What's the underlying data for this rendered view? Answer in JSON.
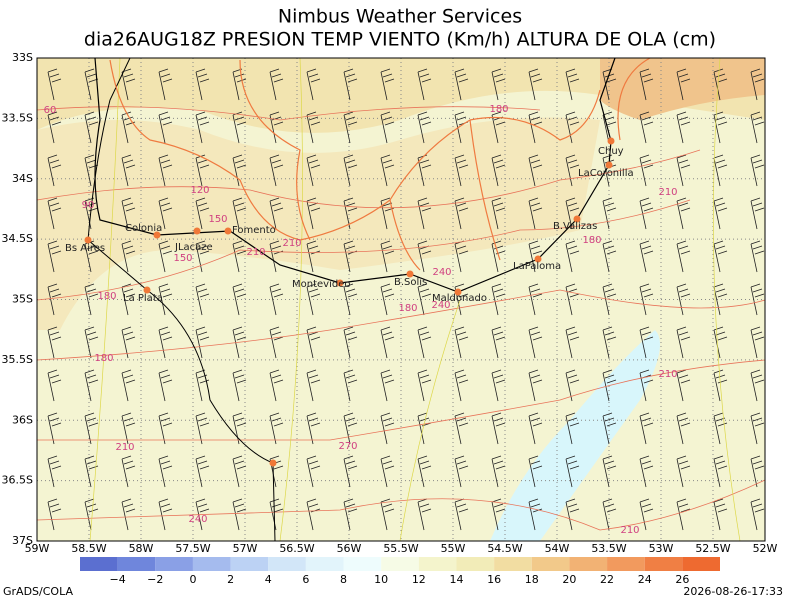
{
  "header": {
    "title": "Nimbus Weather Services",
    "subtitle": "dia26AUG18Z PRESION TEMP VIENTO (Km/h) ALTURA DE OLA (cm)"
  },
  "map": {
    "lat_labels": [
      "33S",
      "33.5S",
      "34S",
      "34.5S",
      "35S",
      "35.5S",
      "36S",
      "36.5S",
      "37S"
    ],
    "lon_labels": [
      "59W",
      "58.5W",
      "58W",
      "57.5W",
      "57W",
      "56.5W",
      "56W",
      "55.5W",
      "55W",
      "54.5W",
      "54W",
      "53.5W",
      "53W",
      "52.5W",
      "52W"
    ],
    "cities": [
      "Colonia",
      "Bs Aires",
      "JLacaze",
      "Fomento",
      "La Plata",
      "Montevideo",
      "B.Solis",
      "Maldonado",
      "LaPaloma",
      "B.Valizas",
      "LaCoronilla",
      "Chuy"
    ],
    "contour_labels": [
      "60",
      "90",
      "120",
      "150",
      "180",
      "210",
      "150",
      "180",
      "180",
      "210",
      "240",
      "180",
      "210",
      "210",
      "180",
      "210",
      "270",
      "210",
      "240",
      "240"
    ]
  },
  "colorbar": {
    "labels": [
      "−4",
      "−2",
      "0",
      "2",
      "4",
      "6",
      "8",
      "10",
      "12",
      "14",
      "16",
      "18",
      "20",
      "22",
      "24",
      "26"
    ],
    "colors": [
      "#5b6fd0",
      "#6f86dc",
      "#8aa0e6",
      "#a5bbee",
      "#bcd2f4",
      "#d2e6f8",
      "#e2f4fb",
      "#eefcfd",
      "#f6fbe6",
      "#f4f4cc",
      "#f2ecb8",
      "#f2dda2",
      "#f2c98a",
      "#f2b274",
      "#f29a5e",
      "#f07f44",
      "#ee6a30"
    ]
  },
  "footer": {
    "left": "GrADS/COLA",
    "right": "2026-08-26-17:33"
  }
}
